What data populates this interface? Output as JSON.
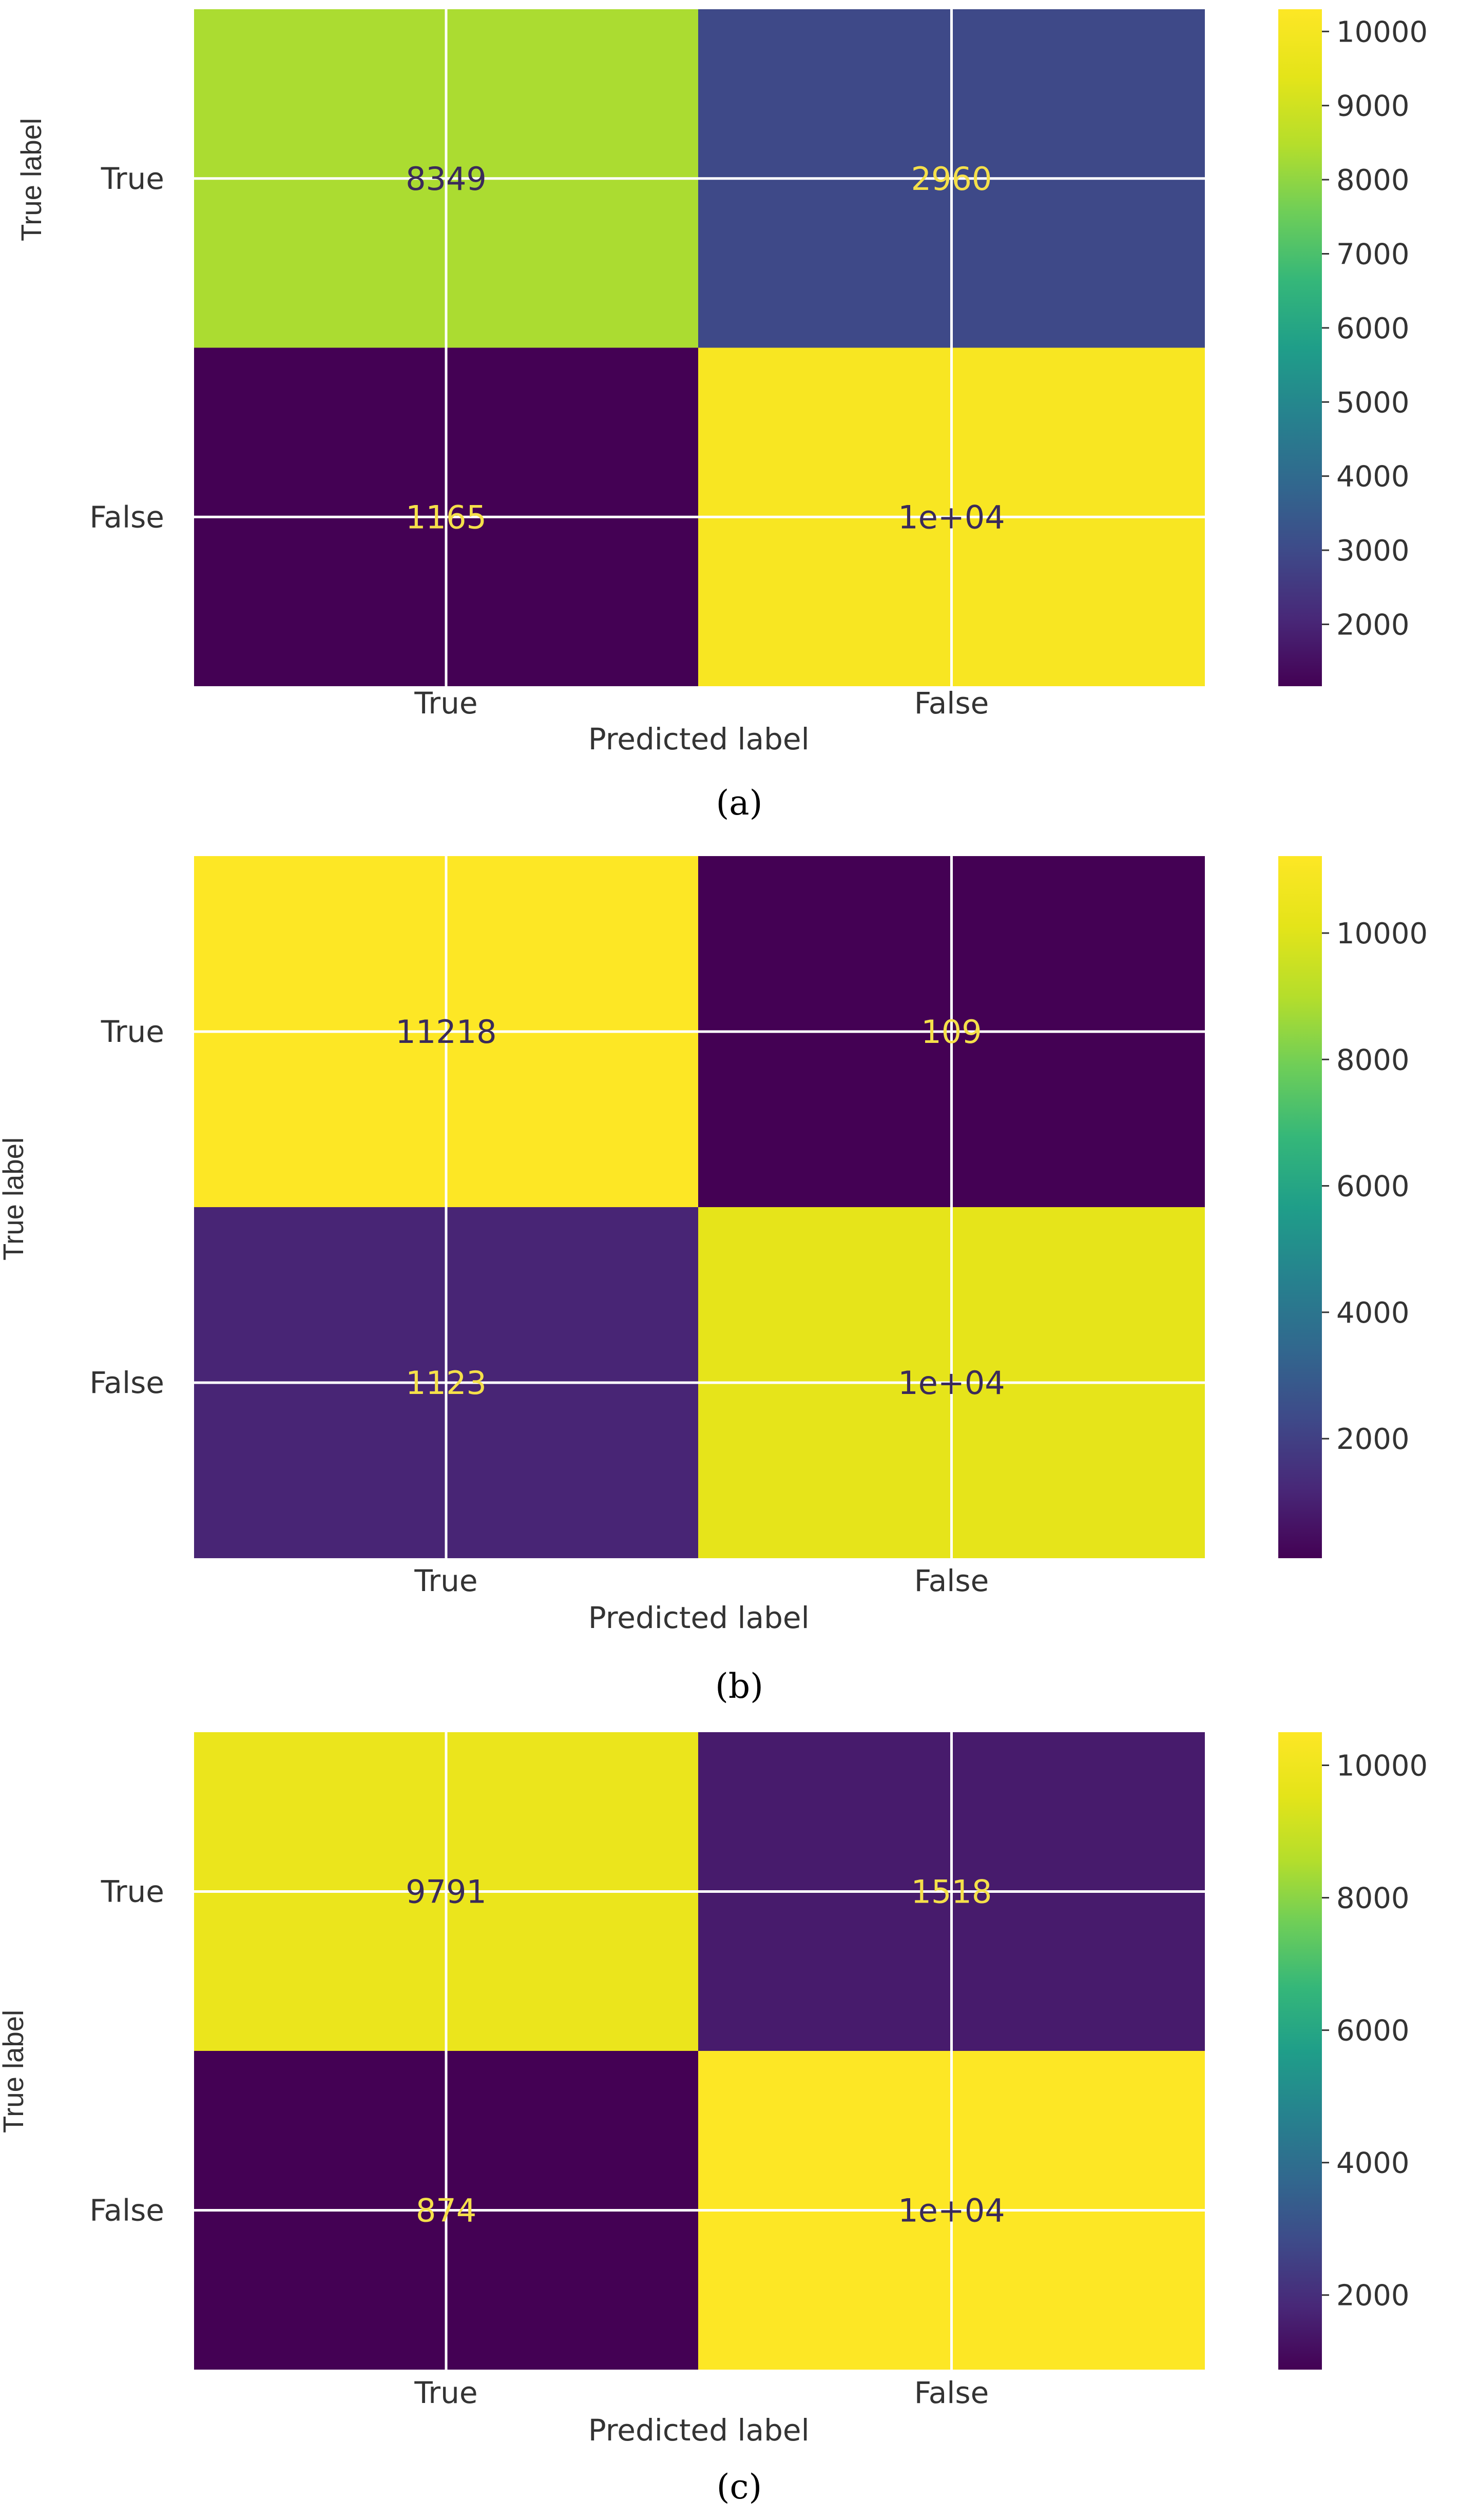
{
  "chart_data": [
    {
      "type": "heatmap",
      "caption": "(a)",
      "xlabel": "Predicted label",
      "ylabel": "True label",
      "x_categories": [
        "True",
        "False"
      ],
      "y_categories": [
        "True",
        "False"
      ],
      "values": [
        [
          8349,
          2960
        ],
        [
          1165,
          10100
        ]
      ],
      "cell_labels": [
        [
          "8349",
          "2960"
        ],
        [
          "1165",
          "1e+04"
        ]
      ],
      "colorscale": "viridis",
      "colorbar": {
        "min": 1165,
        "max": 10300,
        "ticks": [
          2000,
          3000,
          4000,
          5000,
          6000,
          7000,
          8000,
          9000,
          10000
        ],
        "tick_labels": [
          "2000",
          "3000",
          "4000",
          "5000",
          "6000",
          "7000",
          "8000",
          "9000",
          "10000"
        ]
      },
      "grid": true
    },
    {
      "type": "heatmap",
      "caption": "(b)",
      "xlabel": "Predicted label",
      "ylabel": "True label",
      "x_categories": [
        "True",
        "False"
      ],
      "y_categories": [
        "True",
        "False"
      ],
      "values": [
        [
          11218,
          109
        ],
        [
          1123,
          10200
        ]
      ],
      "cell_labels": [
        [
          "11218",
          "109"
        ],
        [
          "1123",
          "1e+04"
        ]
      ],
      "colorscale": "viridis",
      "colorbar": {
        "min": 109,
        "max": 11218,
        "ticks": [
          2000,
          4000,
          6000,
          8000,
          10000
        ],
        "tick_labels": [
          "2000",
          "4000",
          "6000",
          "8000",
          "10000"
        ]
      },
      "grid": true
    },
    {
      "type": "heatmap",
      "caption": "(c)",
      "xlabel": "Predicted label",
      "ylabel": "True label",
      "x_categories": [
        "True",
        "False"
      ],
      "y_categories": [
        "True",
        "False"
      ],
      "values": [
        [
          9791,
          1518
        ],
        [
          874,
          10500
        ]
      ],
      "cell_labels": [
        [
          "9791",
          "1518"
        ],
        [
          "874",
          "1e+04"
        ]
      ],
      "colorscale": "viridis",
      "colorbar": {
        "min": 874,
        "max": 10500,
        "ticks": [
          2000,
          4000,
          6000,
          8000,
          10000
        ],
        "tick_labels": [
          "2000",
          "4000",
          "6000",
          "8000",
          "10000"
        ]
      },
      "grid": true
    }
  ]
}
